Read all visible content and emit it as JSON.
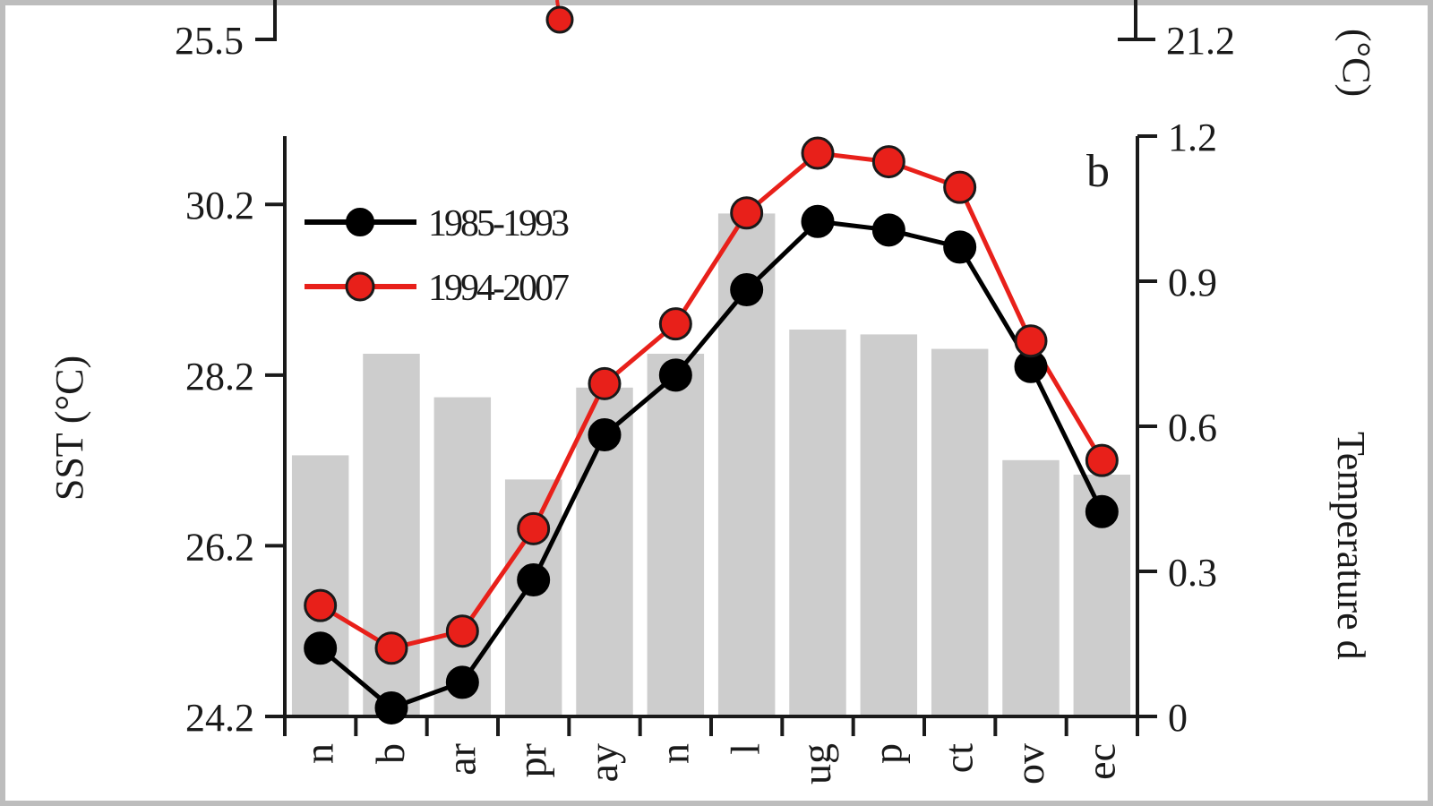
{
  "colors": {
    "series_1985_1993": "#000000",
    "series_1994_2007": "#e8201a",
    "bars": "#cdcdcd",
    "axes": "#1a1a1a",
    "frame": "#bdbdbd"
  },
  "panel_a_partial": {
    "left_tick_label": "25.5",
    "right_tick_label": "21.2",
    "right_unit": "(°C)"
  },
  "chart_data": {
    "type": "bar+line",
    "panel_label": "b",
    "categories": [
      "Jan",
      "Feb",
      "Mar",
      "Apr",
      "May",
      "Jun",
      "Jul",
      "Aug",
      "Sep",
      "Oct",
      "Nov",
      "Dec"
    ],
    "visible_x_tick_labels": [
      "n",
      "b",
      "ar",
      "pr",
      "ay",
      "n",
      "l",
      "ug",
      "p",
      "ct",
      "ov",
      "ec"
    ],
    "ylabel_left": "SST (°C)",
    "ylabel_right": "Temperature d",
    "ylim_left": [
      24.2,
      31.0
    ],
    "ylim_right": [
      0,
      1.2
    ],
    "left_ticks": [
      "24.2",
      "26.2",
      "28.2",
      "30.2"
    ],
    "right_ticks": [
      "0",
      "0.3",
      "0.6",
      "0.9",
      "1.2"
    ],
    "bars": {
      "axis": "right",
      "values": [
        0.54,
        0.75,
        0.66,
        0.49,
        0.68,
        0.75,
        1.04,
        0.8,
        0.79,
        0.76,
        0.53,
        0.5
      ]
    },
    "series": [
      {
        "name": "1985-1993",
        "axis": "left",
        "values": [
          25.0,
          24.3,
          24.6,
          25.8,
          27.5,
          28.2,
          29.2,
          30.0,
          29.9,
          29.7,
          28.3,
          26.6
        ]
      },
      {
        "name": "1994-2007",
        "axis": "left",
        "values": [
          25.5,
          25.0,
          25.2,
          26.4,
          28.1,
          28.8,
          30.1,
          30.8,
          30.7,
          30.4,
          28.6,
          27.2
        ]
      }
    ],
    "legend_position": "top-left",
    "grid": false
  }
}
